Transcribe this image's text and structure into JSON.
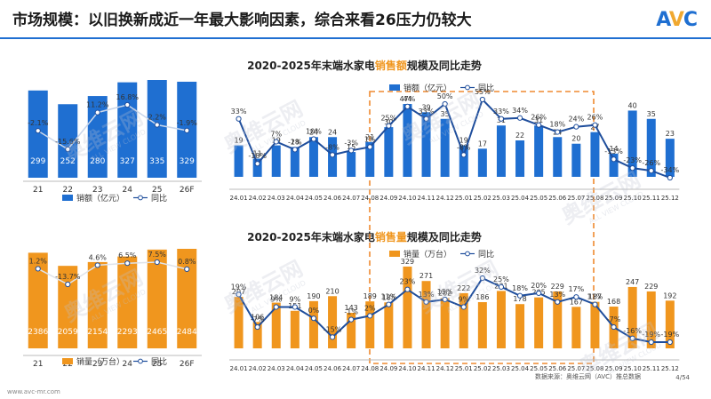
{
  "header": {
    "title": "市场规模：以旧换新成近一年最大影响因素，综合来看26压力仍较大",
    "logo_text_a": "A",
    "logo_text_v": "V",
    "logo_text_c": "C"
  },
  "footer": {
    "website": "www.avc-mr.com",
    "source": "数据来源：奥维云网（AVC）推总数据",
    "page": "4/54"
  },
  "watermark": {
    "text": "奥维云网",
    "text_en": "ALL VIEW CLOUD"
  },
  "colors": {
    "blue": "#1f6fd1",
    "orange": "#f0961e",
    "line": "#1f4e9c",
    "highlight": "#ef8a30"
  },
  "chart_data": [
    {
      "id": "annual-sales-value",
      "type": "bar",
      "categories": [
        "21",
        "22",
        "23",
        "24",
        "25",
        "26F"
      ],
      "series": [
        {
          "name": "销额（亿元）",
          "type": "bar",
          "values": [
            299,
            252,
            280,
            327,
            335,
            329
          ]
        },
        {
          "name": "同比",
          "type": "line",
          "values": [
            -2.1,
            -15.6,
            11.2,
            16.8,
            2.2,
            -1.9
          ],
          "labels": [
            "-2.1%",
            "-15.6%",
            "11.2%",
            "16.8%",
            "2.2%",
            "-1.9%"
          ]
        }
      ]
    },
    {
      "id": "monthly-sales-value",
      "type": "bar",
      "title_prefix": "2020-2025年末端水家电",
      "title_highlight": "销售额",
      "title_suffix": "规模及同比走势",
      "categories": [
        "24.01",
        "24.02",
        "24.03",
        "24.04",
        "24.05",
        "24.06",
        "24.07",
        "24.08",
        "24.09",
        "24.10",
        "24.11",
        "24.12",
        "25.01",
        "25.02",
        "25.03",
        "25.04",
        "25.05",
        "25.06",
        "25.07",
        "25.08",
        "25.09",
        "25.10",
        "25.11",
        "25.12"
      ],
      "series": [
        {
          "name": "销额（亿元）",
          "type": "bar",
          "values": [
            19,
            11,
            19,
            18,
            24,
            24,
            15,
            21,
            30,
            44,
            39,
            35,
            19,
            17,
            31,
            22,
            31,
            24,
            20,
            27,
            14,
            40,
            35,
            23
          ]
        },
        {
          "name": "同比",
          "type": "line",
          "values": [
            33,
            -18,
            7,
            -2,
            10,
            -8,
            -3,
            1,
            25,
            47,
            33,
            50,
            -8,
            55,
            33,
            34,
            26,
            18,
            24,
            26,
            -13,
            -23,
            -26,
            -34
          ],
          "labels": [
            "33%",
            "-18%",
            "7%",
            "-2%",
            "10%",
            "-8%",
            "-3%",
            "1%",
            "25%",
            "47%",
            "33%",
            "50%",
            "-8%",
            "55%",
            "33%",
            "34%",
            "26%",
            "18%",
            "24%",
            "26%",
            "-13%",
            "-23%",
            "-26%",
            "-34%"
          ]
        }
      ],
      "value_labels": [
        "19",
        "11",
        "19",
        "18",
        "24",
        "24",
        "15",
        "21",
        "30",
        "44",
        "39",
        "35",
        "19",
        "17",
        "31",
        "22",
        "31",
        "24",
        "20",
        "27",
        "14",
        "40",
        "35",
        "23"
      ]
    },
    {
      "id": "annual-sales-volume",
      "type": "bar",
      "categories": [
        "21",
        "22",
        "23",
        "24",
        "25",
        "26F"
      ],
      "series": [
        {
          "name": "销量（万台）",
          "type": "bar",
          "values": [
            2386,
            2059,
            2154,
            2293,
            2465,
            2484
          ]
        },
        {
          "name": "同比",
          "type": "line",
          "values": [
            1.2,
            -13.7,
            4.6,
            6.5,
            7.5,
            0.8
          ],
          "labels": [
            "1.2%",
            "-13.7%",
            "4.6%",
            "6.5%",
            "7.5%",
            "0.8%"
          ]
        }
      ]
    },
    {
      "id": "monthly-sales-volume",
      "type": "bar",
      "title_prefix": "2020-2025年末端水家电",
      "title_highlight": "销售量",
      "title_suffix": "规模及同比走势",
      "categories": [
        "24.01",
        "24.02",
        "24.03",
        "24.04",
        "24.05",
        "24.06",
        "24.07",
        "24.08",
        "24.09",
        "24.10",
        "24.11",
        "24.12",
        "25.01",
        "25.02",
        "25.03",
        "25.04",
        "25.05",
        "25.06",
        "25.07",
        "25.08",
        "25.09",
        "25.10",
        "25.11",
        "25.12"
      ],
      "series": [
        {
          "name": "销量（万台）",
          "type": "bar",
          "values": [
            207,
            106,
            184,
            151,
            190,
            210,
            143,
            189,
            185,
            329,
            271,
            202,
            222,
            186,
            231,
            178,
            205,
            229,
            167,
            187,
            168,
            247,
            229,
            192
          ]
        },
        {
          "name": "同比",
          "type": "line",
          "values": [
            19,
            -7,
            9,
            9,
            0,
            -15,
            -1,
            2,
            11,
            23,
            13,
            15,
            9,
            32,
            25,
            18,
            20,
            13,
            17,
            11,
            -7,
            -16,
            -19,
            -19
          ],
          "labels": [
            "19%",
            "-7%",
            "9%",
            "9%",
            "0%",
            "-15%",
            "-1%",
            "2%",
            "11%",
            "23%",
            "13%",
            "15%",
            "9%",
            "32%",
            "25%",
            "18%",
            "20%",
            "13%",
            "17%",
            "11%",
            "-7%",
            "-16%",
            "-19%",
            "-19%"
          ]
        }
      ],
      "value_labels": [
        "207",
        "106",
        "184",
        "151",
        "190",
        "210",
        "143",
        "189",
        "185",
        "329",
        "271",
        "202",
        "222",
        "186",
        "231",
        "178",
        "205",
        "229",
        "167",
        "187",
        "168",
        "247",
        "229",
        "192"
      ]
    }
  ]
}
